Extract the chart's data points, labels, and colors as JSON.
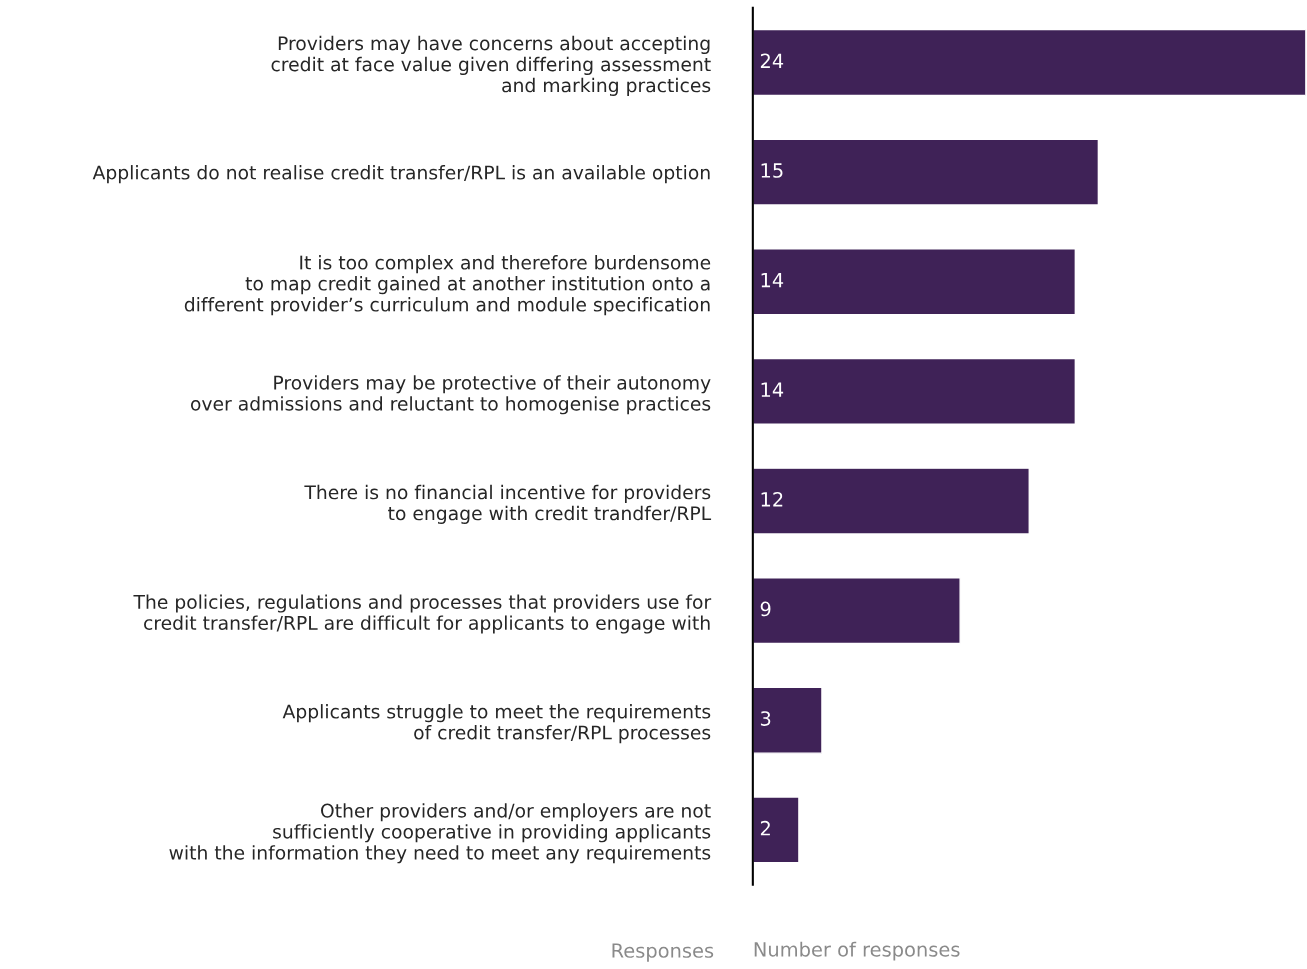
{
  "chart_data": {
    "type": "bar",
    "orientation": "horizontal",
    "categories": [
      "Providers may have concerns about accepting\ncredit at face value given differing assessment\nand marking practices",
      "Applicants do not realise credit transfer/RPL is an available option",
      "It is too complex and therefore burdensome\nto map credit gained at another institution onto a\ndifferent provider’s curriculum and module specification",
      "Providers may be protective of their autonomy\nover admissions and reluctant to homogenise practices",
      "There is no financial incentive for providers\nto engage with credit trandfer/RPL",
      "The policies, regulations and processes that providers use for\ncredit transfer/RPL are difficult for applicants to engage with",
      "Applicants struggle to meet the requirements\nof credit transfer/RPL processes",
      "Other providers and/or employers are not\nsufficiently cooperative in providing applicants\nwith the information they need to meet any requirements"
    ],
    "values": [
      24,
      15,
      14,
      14,
      12,
      9,
      3,
      2
    ],
    "color": "#3f2257",
    "data_labels": true,
    "xlabel": "Number of responses",
    "ylabel": "Responses",
    "grid": false,
    "legend": false
  }
}
